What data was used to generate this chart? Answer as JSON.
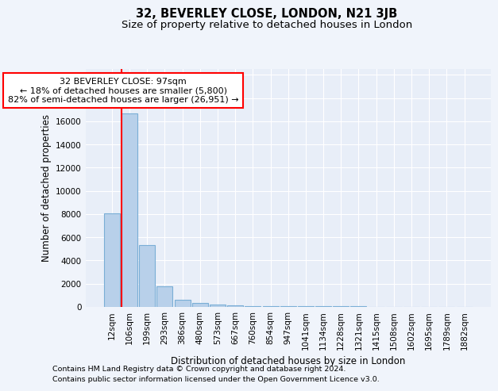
{
  "title": "32, BEVERLEY CLOSE, LONDON, N21 3JB",
  "subtitle": "Size of property relative to detached houses in London",
  "xlabel": "Distribution of detached houses by size in London",
  "ylabel": "Number of detached properties",
  "categories": [
    "12sqm",
    "106sqm",
    "199sqm",
    "293sqm",
    "386sqm",
    "480sqm",
    "573sqm",
    "667sqm",
    "760sqm",
    "854sqm",
    "947sqm",
    "1041sqm",
    "1134sqm",
    "1228sqm",
    "1321sqm",
    "1415sqm",
    "1508sqm",
    "1602sqm",
    "1695sqm",
    "1789sqm",
    "1882sqm"
  ],
  "values": [
    8050,
    16700,
    5300,
    1750,
    600,
    350,
    220,
    150,
    100,
    90,
    75,
    70,
    60,
    55,
    50,
    30,
    25,
    22,
    20,
    18,
    15
  ],
  "bar_color": "#b8d0ea",
  "bar_edge_color": "#7aaed6",
  "bar_linewidth": 0.8,
  "vline_color": "red",
  "vline_linewidth": 1.5,
  "vline_pos": 0.555,
  "annotation_text": "32 BEVERLEY CLOSE: 97sqm\n← 18% of detached houses are smaller (5,800)\n82% of semi-detached houses are larger (26,951) →",
  "ylim": [
    0,
    20500
  ],
  "yticks": [
    0,
    2000,
    4000,
    6000,
    8000,
    10000,
    12000,
    14000,
    16000,
    18000,
    20000
  ],
  "footer_line1": "Contains HM Land Registry data © Crown copyright and database right 2024.",
  "footer_line2": "Contains public sector information licensed under the Open Government Licence v3.0.",
  "bg_color": "#f0f4fb",
  "plot_bg_color": "#e8eef8",
  "grid_color": "#ffffff",
  "title_fontsize": 10.5,
  "subtitle_fontsize": 9.5,
  "axis_label_fontsize": 8.5,
  "tick_fontsize": 7.5,
  "annotation_fontsize": 8,
  "footer_fontsize": 6.8
}
